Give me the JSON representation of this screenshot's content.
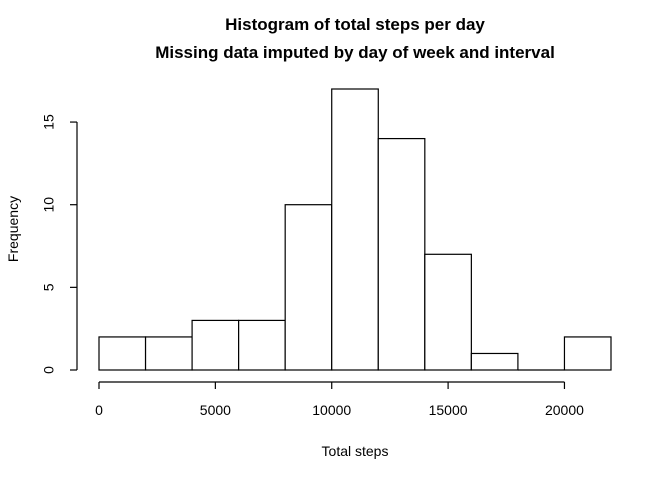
{
  "chart_data": {
    "type": "bar",
    "title": "Histogram of total steps per day",
    "subtitle": "Missing data imputed by day of week and interval",
    "xlabel": "Total steps",
    "ylabel": "Frequency",
    "bins": [
      {
        "from": 0,
        "to": 2000,
        "count": 2
      },
      {
        "from": 2000,
        "to": 4000,
        "count": 2
      },
      {
        "from": 4000,
        "to": 6000,
        "count": 3
      },
      {
        "from": 6000,
        "to": 8000,
        "count": 3
      },
      {
        "from": 8000,
        "to": 10000,
        "count": 10
      },
      {
        "from": 10000,
        "to": 12000,
        "count": 17
      },
      {
        "from": 12000,
        "to": 14000,
        "count": 14
      },
      {
        "from": 14000,
        "to": 16000,
        "count": 7
      },
      {
        "from": 16000,
        "to": 18000,
        "count": 1
      },
      {
        "from": 18000,
        "to": 20000,
        "count": 0
      },
      {
        "from": 20000,
        "to": 22000,
        "count": 2
      }
    ],
    "xticks": [
      0,
      5000,
      10000,
      15000,
      20000
    ],
    "yticks": [
      0,
      5,
      10,
      15
    ],
    "xlim": [
      0,
      22000
    ],
    "ylim": [
      0,
      17
    ],
    "grid": false,
    "bar_fill": "#ffffff",
    "bar_stroke": "#000000"
  }
}
